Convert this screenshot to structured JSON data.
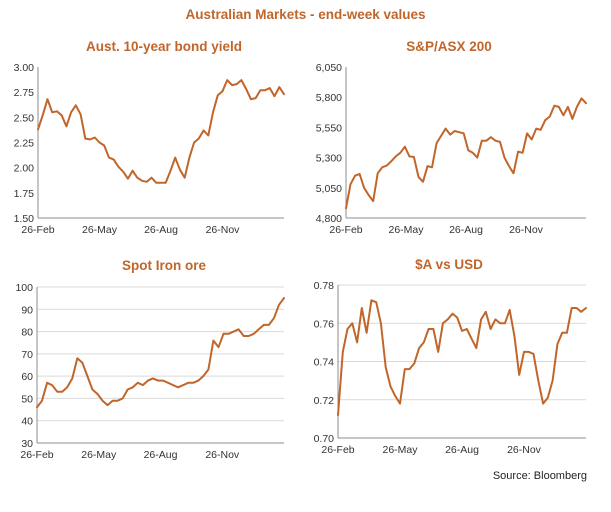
{
  "page": {
    "title": "Australian Markets - end-week values",
    "source": "Source: Bloomberg",
    "series_color": "#c0662a"
  },
  "chart_data": [
    {
      "type": "line",
      "title": "Aust. 10-year bond yield",
      "xlabel": "",
      "ylabel": "",
      "grid": false,
      "ylim": [
        1.5,
        3.0
      ],
      "yticks": [
        "3.00",
        "2.75",
        "2.50",
        "2.25",
        "2.00",
        "1.75",
        "1.50"
      ],
      "xticks": [
        "26-Feb",
        "26-May",
        "26-Aug",
        "26-Nov"
      ],
      "values": [
        2.38,
        2.52,
        2.68,
        2.55,
        2.56,
        2.52,
        2.41,
        2.55,
        2.62,
        2.53,
        2.29,
        2.28,
        2.3,
        2.25,
        2.22,
        2.1,
        2.08,
        2.01,
        1.96,
        1.89,
        1.97,
        1.9,
        1.87,
        1.86,
        1.9,
        1.85,
        1.85,
        1.85,
        1.97,
        2.1,
        1.98,
        1.9,
        2.1,
        2.25,
        2.29,
        2.37,
        2.32,
        2.55,
        2.72,
        2.76,
        2.87,
        2.82,
        2.83,
        2.87,
        2.78,
        2.68,
        2.69,
        2.77,
        2.77,
        2.79,
        2.71,
        2.8,
        2.73
      ]
    },
    {
      "type": "line",
      "title": "S&P/ASX 200",
      "xlabel": "",
      "ylabel": "",
      "grid": false,
      "ylim": [
        4800,
        6050
      ],
      "yticks": [
        "6,050",
        "5,800",
        "5,550",
        "5,300",
        "5,050",
        "4,800"
      ],
      "xticks": [
        "26-Feb",
        "26-May",
        "26-Aug",
        "26-Nov"
      ],
      "values": [
        4880,
        5080,
        5150,
        5165,
        5050,
        4990,
        4940,
        5170,
        5220,
        5235,
        5270,
        5310,
        5340,
        5390,
        5310,
        5305,
        5140,
        5100,
        5230,
        5220,
        5420,
        5480,
        5540,
        5490,
        5520,
        5510,
        5500,
        5360,
        5340,
        5300,
        5440,
        5440,
        5470,
        5440,
        5430,
        5300,
        5230,
        5170,
        5350,
        5340,
        5500,
        5450,
        5540,
        5530,
        5610,
        5640,
        5730,
        5720,
        5650,
        5720,
        5620,
        5720,
        5790,
        5750
      ]
    },
    {
      "type": "line",
      "title": "Spot Iron ore",
      "xlabel": "",
      "ylabel": "",
      "grid": true,
      "ylim": [
        30,
        100
      ],
      "yticks": [
        "100",
        "90",
        "80",
        "70",
        "60",
        "50",
        "40",
        "30"
      ],
      "xticks": [
        "26-Feb",
        "26-May",
        "26-Aug",
        "26-Nov"
      ],
      "values": [
        46,
        49,
        57,
        56,
        53,
        53,
        55,
        59,
        68,
        66,
        60,
        54,
        52,
        49,
        47,
        49,
        49,
        50,
        54,
        55,
        57,
        56,
        58,
        59,
        58,
        58,
        57,
        56,
        55,
        56,
        57,
        57,
        58,
        60,
        63,
        76,
        73,
        79,
        79,
        80,
        81,
        78,
        78,
        79,
        81,
        83,
        83,
        86,
        92,
        95
      ]
    },
    {
      "type": "line",
      "title": "$A vs USD",
      "xlabel": "",
      "ylabel": "",
      "grid": true,
      "ylim": [
        0.7,
        0.78
      ],
      "yticks": [
        "0.78",
        "0.76",
        "0.74",
        "0.72",
        "0.70"
      ],
      "xticks": [
        "26-Feb",
        "26-May",
        "26-Aug",
        "26-Nov"
      ],
      "values": [
        0.712,
        0.745,
        0.757,
        0.76,
        0.75,
        0.768,
        0.755,
        0.772,
        0.771,
        0.76,
        0.737,
        0.727,
        0.722,
        0.718,
        0.736,
        0.736,
        0.739,
        0.747,
        0.75,
        0.757,
        0.757,
        0.745,
        0.76,
        0.762,
        0.765,
        0.763,
        0.756,
        0.757,
        0.752,
        0.747,
        0.762,
        0.766,
        0.757,
        0.762,
        0.76,
        0.76,
        0.767,
        0.753,
        0.733,
        0.745,
        0.745,
        0.744,
        0.73,
        0.718,
        0.721,
        0.73,
        0.749,
        0.755,
        0.755,
        0.768,
        0.768,
        0.766,
        0.768
      ]
    }
  ]
}
